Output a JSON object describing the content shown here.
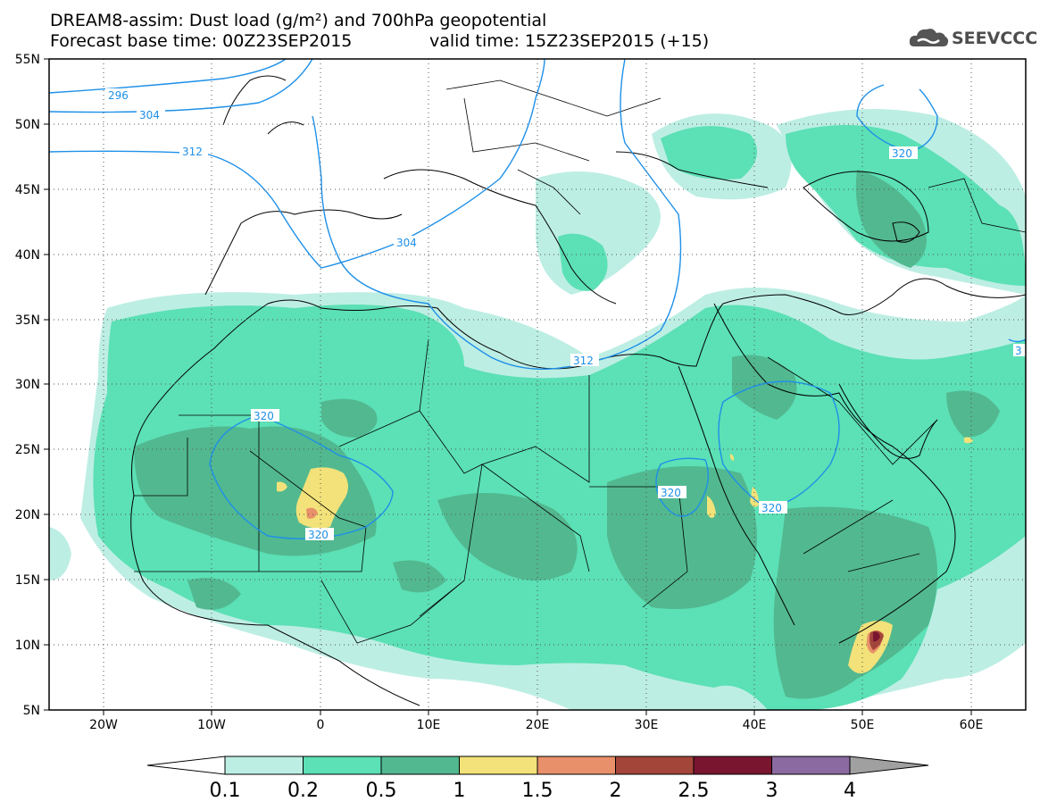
{
  "header": {
    "title": "DREAM8-assim: Dust load (g/m²) and 700hPa geopotential",
    "base_time": "Forecast base time: 00Z23SEP2015",
    "valid_time": "valid time: 15Z23SEP2015 (+15)",
    "logo_text": "SEEVCCC"
  },
  "map": {
    "lat_labels": [
      "55N",
      "50N",
      "45N",
      "40N",
      "35N",
      "30N",
      "25N",
      "20N",
      "15N",
      "10N",
      "5N"
    ],
    "lon_labels": [
      "20W",
      "10W",
      "0",
      "10E",
      "20E",
      "30E",
      "40E",
      "50E",
      "60E"
    ],
    "contour_labels": [
      "296",
      "304",
      "312",
      "304",
      "312",
      "320",
      "320",
      "320",
      "320",
      "320",
      "3"
    ]
  },
  "legend": {
    "levels": [
      "0.1",
      "0.2",
      "0.5",
      "1",
      "1.5",
      "2",
      "2.5",
      "3",
      "4"
    ],
    "colors": [
      "#bdeee4",
      "#5ce0b5",
      "#52b890",
      "#f2e279",
      "#e8906a",
      "#a4453a",
      "#7a1530",
      "#8a6aa0",
      "#a0a0a0"
    ]
  }
}
